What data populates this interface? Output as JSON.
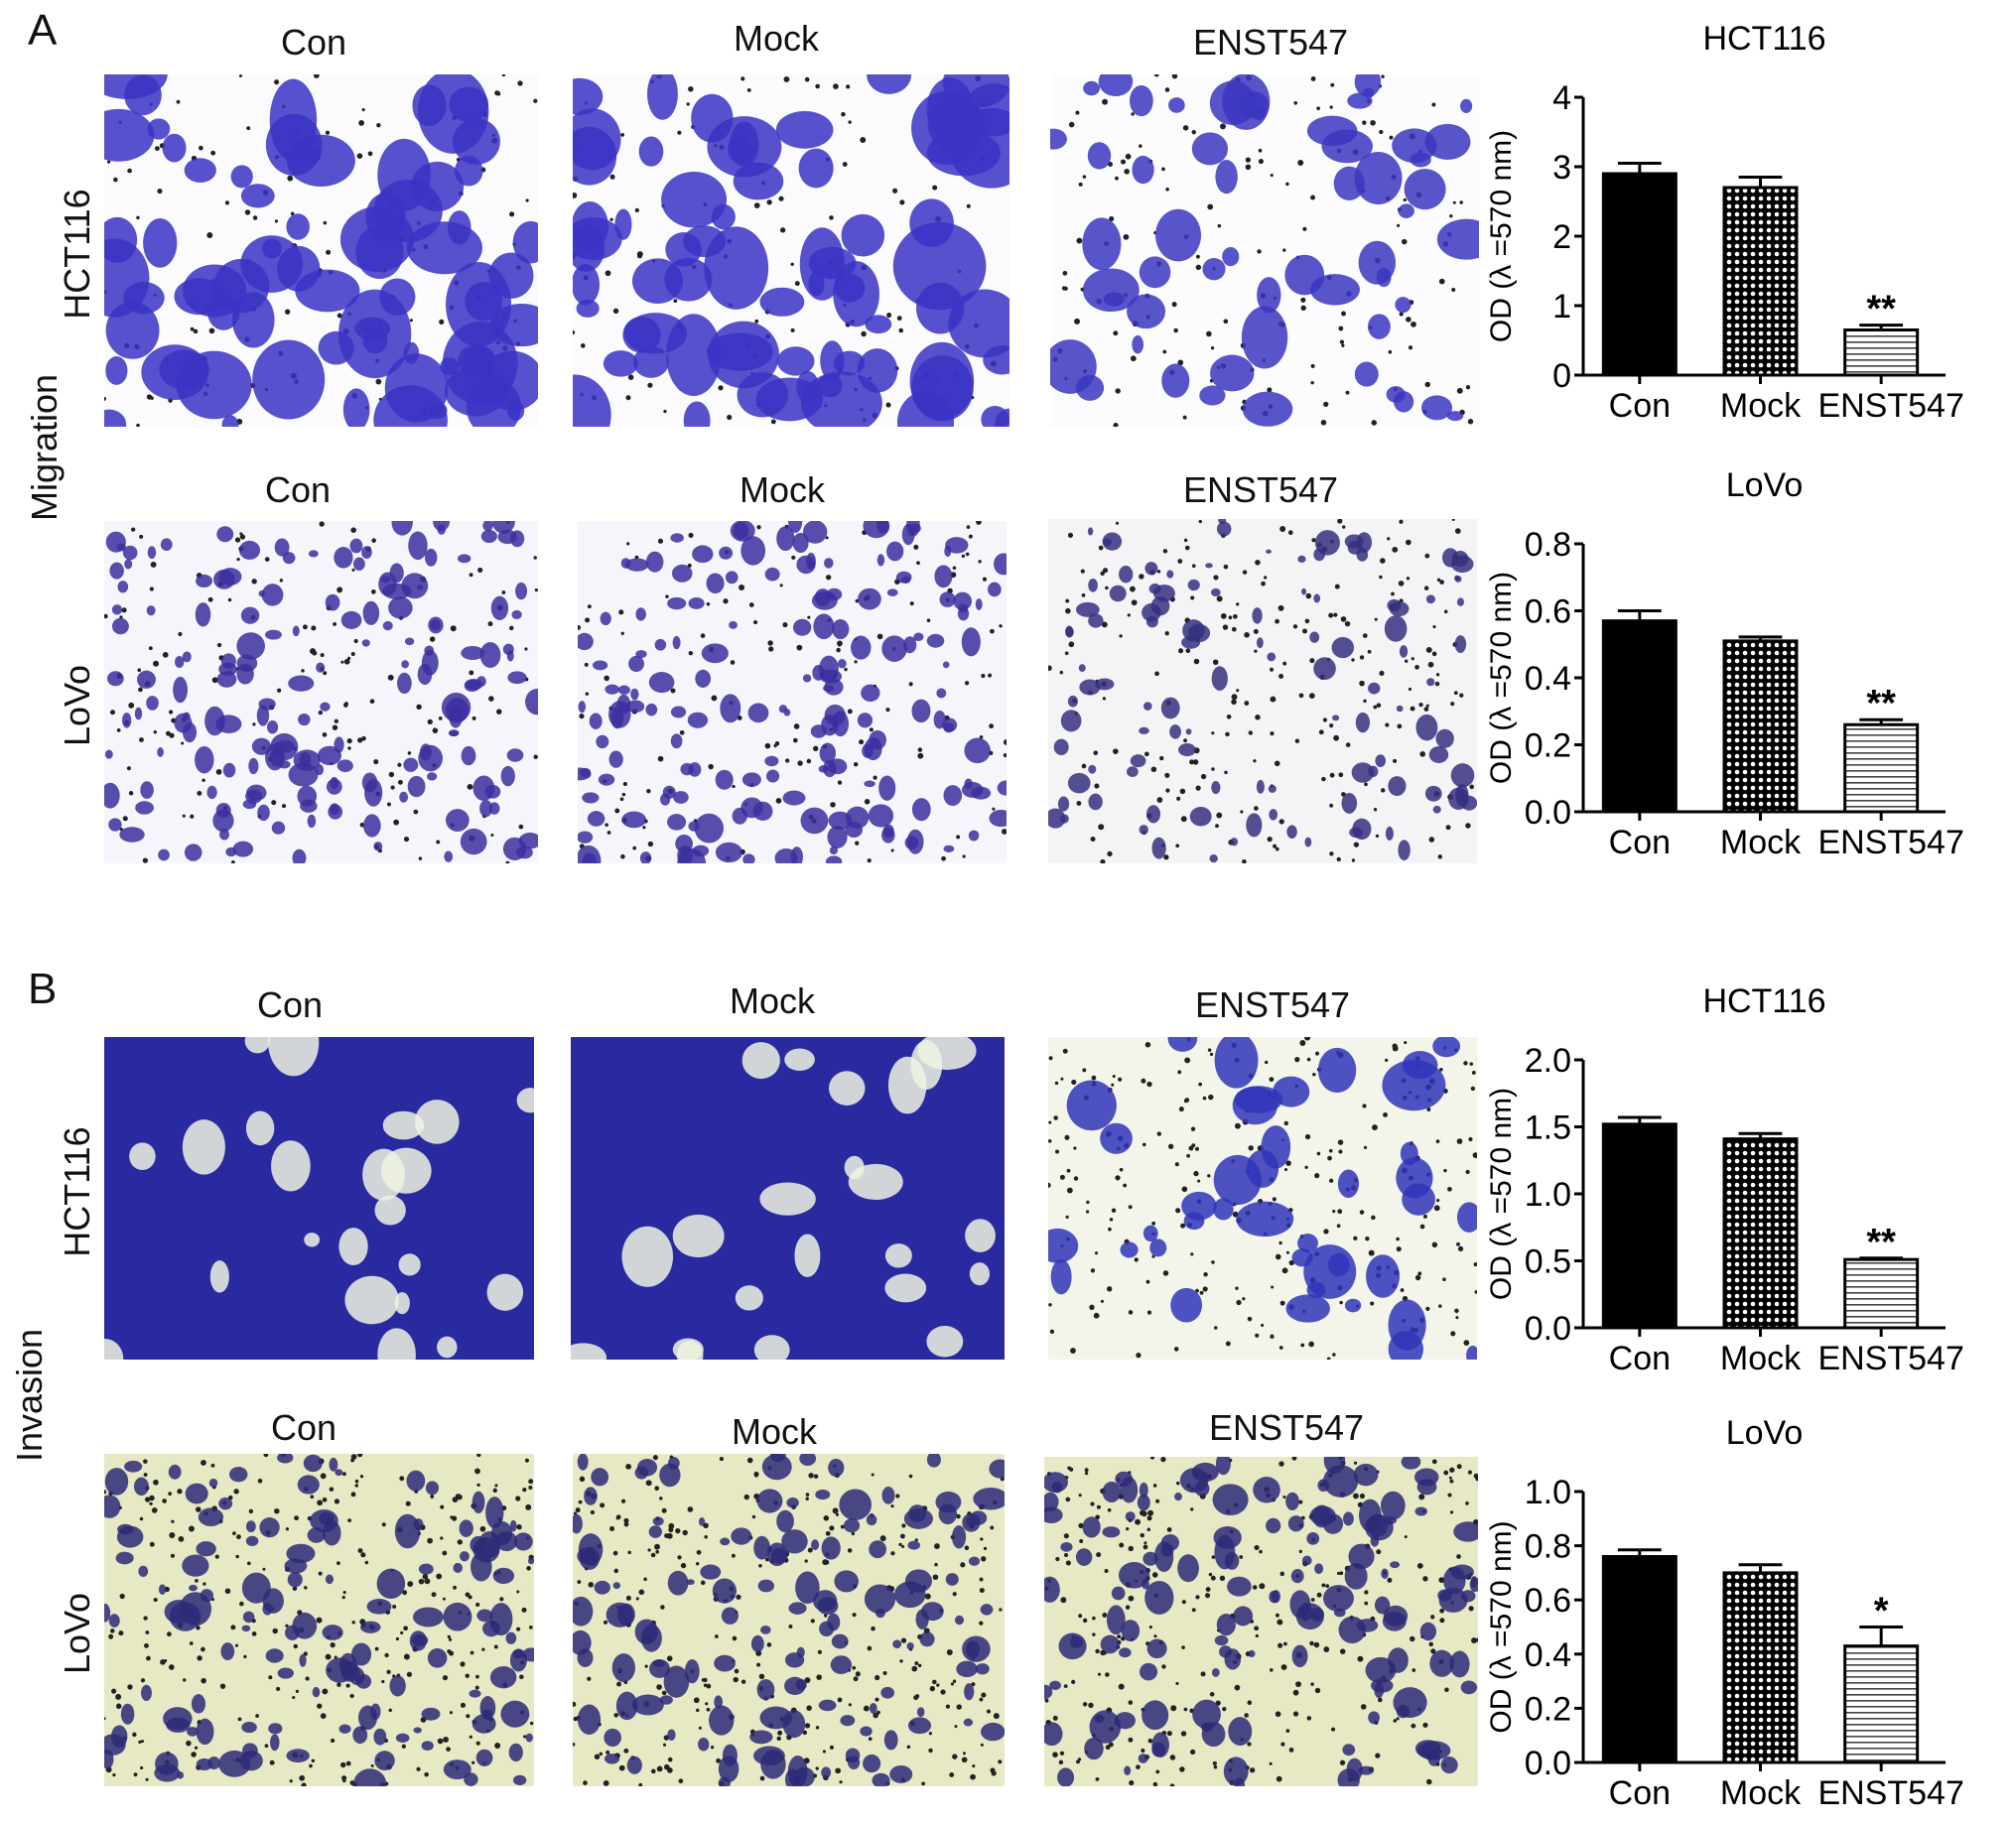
{
  "panels": [
    {
      "letter": "A",
      "side_label": "Migration",
      "rows": [
        {
          "cell_line": "HCT116",
          "columns": [
            "Con",
            "Mock",
            "ENST547"
          ]
        },
        {
          "cell_line": "LoVo",
          "columns": [
            "Con",
            "Mock",
            "ENST547"
          ]
        }
      ]
    },
    {
      "letter": "B",
      "side_label": "Invasion",
      "rows": [
        {
          "cell_line": "HCT116",
          "columns": [
            "Con",
            "Mock",
            "ENST547"
          ]
        },
        {
          "cell_line": "LoVo",
          "columns": [
            "Con",
            "Mock",
            "ENST547"
          ]
        }
      ]
    }
  ],
  "chart_data": [
    {
      "type": "bar",
      "title": "HCT116",
      "panel": "A",
      "ylabel": "OD (λ =570 nm)",
      "xlabel": "",
      "categories": [
        "Con",
        "Mock",
        "ENST547"
      ],
      "values": [
        2.9,
        2.7,
        0.65
      ],
      "errors": [
        0.15,
        0.15,
        0.07
      ],
      "significance": [
        "",
        "",
        "**"
      ],
      "ylim": [
        0,
        4
      ],
      "yticks": [
        "0",
        "1",
        "2",
        "3",
        "4"
      ],
      "grid": false
    },
    {
      "type": "bar",
      "title": "LoVo",
      "panel": "A",
      "ylabel": "OD (λ =570 nm)",
      "xlabel": "",
      "categories": [
        "Con",
        "Mock",
        "ENST547"
      ],
      "values": [
        0.57,
        0.51,
        0.26
      ],
      "errors": [
        0.03,
        0.012,
        0.015
      ],
      "significance": [
        "",
        "",
        "**"
      ],
      "ylim": [
        0,
        0.8
      ],
      "yticks": [
        "0.0",
        "0.2",
        "0.4",
        "0.6",
        "0.8"
      ],
      "grid": false
    },
    {
      "type": "bar",
      "title": "HCT116",
      "panel": "B",
      "ylabel": "OD (λ =570 nm)",
      "xlabel": "",
      "categories": [
        "Con",
        "Mock",
        "ENST547"
      ],
      "values": [
        1.52,
        1.41,
        0.51
      ],
      "errors": [
        0.05,
        0.04,
        0.01
      ],
      "significance": [
        "",
        "",
        "**"
      ],
      "ylim": [
        0,
        2.0
      ],
      "yticks": [
        "0.0",
        "0.5",
        "1.0",
        "1.5",
        "2.0"
      ],
      "grid": false
    },
    {
      "type": "bar",
      "title": "LoVo",
      "panel": "B",
      "ylabel": "OD (λ =570 nm)",
      "xlabel": "",
      "categories": [
        "Con",
        "Mock",
        "ENST547"
      ],
      "values": [
        0.76,
        0.7,
        0.43
      ],
      "errors": [
        0.025,
        0.03,
        0.07
      ],
      "significance": [
        "",
        "",
        "*"
      ],
      "ylim": [
        0,
        1.0
      ],
      "yticks": [
        "0.0",
        "0.2",
        "0.4",
        "0.6",
        "0.8",
        "1.0"
      ],
      "grid": false
    }
  ]
}
